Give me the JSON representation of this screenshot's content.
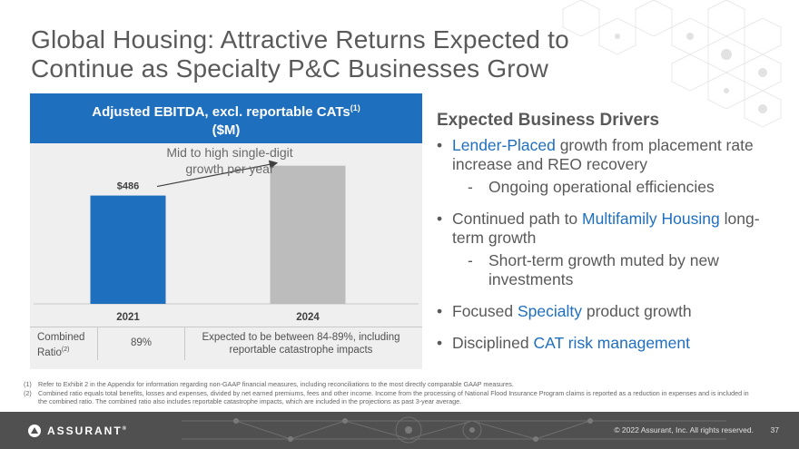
{
  "slide": {
    "title_line1": "Global Housing: Attractive Returns Expected to",
    "title_line2": "Continue as Specialty P&C Businesses Grow",
    "page_number": "37",
    "copyright": "© 2022 Assurant, Inc. All rights reserved."
  },
  "panel": {
    "header_line1": "Adjusted EBITDA, excl. reportable CATs",
    "header_sup": "(1)",
    "header_line2": "($M)",
    "growth_note_line1": "Mid to high single-digit",
    "growth_note_line2": "growth per year",
    "ratio_label_line1": "Combined",
    "ratio_label_line2": "Ratio",
    "ratio_label_sup": "(2)",
    "ratio_2021": "89%",
    "ratio_2024_line1": "Expected to be between 84-89%, including",
    "ratio_2024_line2": "reportable catastrophe impacts"
  },
  "chart_data": {
    "type": "bar",
    "categories": [
      "2021",
      "2024"
    ],
    "values": [
      486,
      620
    ],
    "data_labels": [
      "$486",
      ""
    ],
    "colors": [
      "#1f6fbf",
      "#bcbcbc"
    ],
    "ylim": [
      0,
      700
    ],
    "title": "Adjusted EBITDA, excl. reportable CATs(1) ($M)"
  },
  "drivers": {
    "title": "Expected Business Drivers",
    "items": [
      {
        "bullet": "•",
        "highlight": "Lender-Placed",
        "text": " growth from placement rate increase and REO recovery",
        "sub": "Ongoing operational efficiencies"
      },
      {
        "bullet": "•",
        "pre": "Continued path to ",
        "highlight": "Multifamily Housing",
        "text": " long-term growth",
        "sub": "Short-term growth muted by new investments"
      },
      {
        "bullet": "•",
        "pre": "Focused ",
        "highlight": "Specialty",
        "text": " product growth"
      },
      {
        "bullet": "•",
        "pre": "Disciplined ",
        "highlight": "CAT risk management"
      }
    ],
    "sub_dash": "-"
  },
  "footnotes": [
    {
      "num": "(1)",
      "text": "Refer to Exhibit 2 in the Appendix for information regarding non-GAAP financial measures, including reconciliations to the most directly comparable GAAP measures."
    },
    {
      "num": "(2)",
      "text": "Combined ratio equals total benefits, losses and expenses, divided by net earned premiums, fees and other income. Income from the processing of National Flood Insurance Program claims is reported as a reduction in expenses and is included in the combined ratio. The combined ratio also includes reportable catastrophe impacts, which are included in the projections as past 3-year average."
    }
  ],
  "brand": {
    "logo_text": "ASSURANT",
    "logo_mark": "®",
    "accent": "#1f6fbf",
    "footer_bg": "#505050"
  }
}
